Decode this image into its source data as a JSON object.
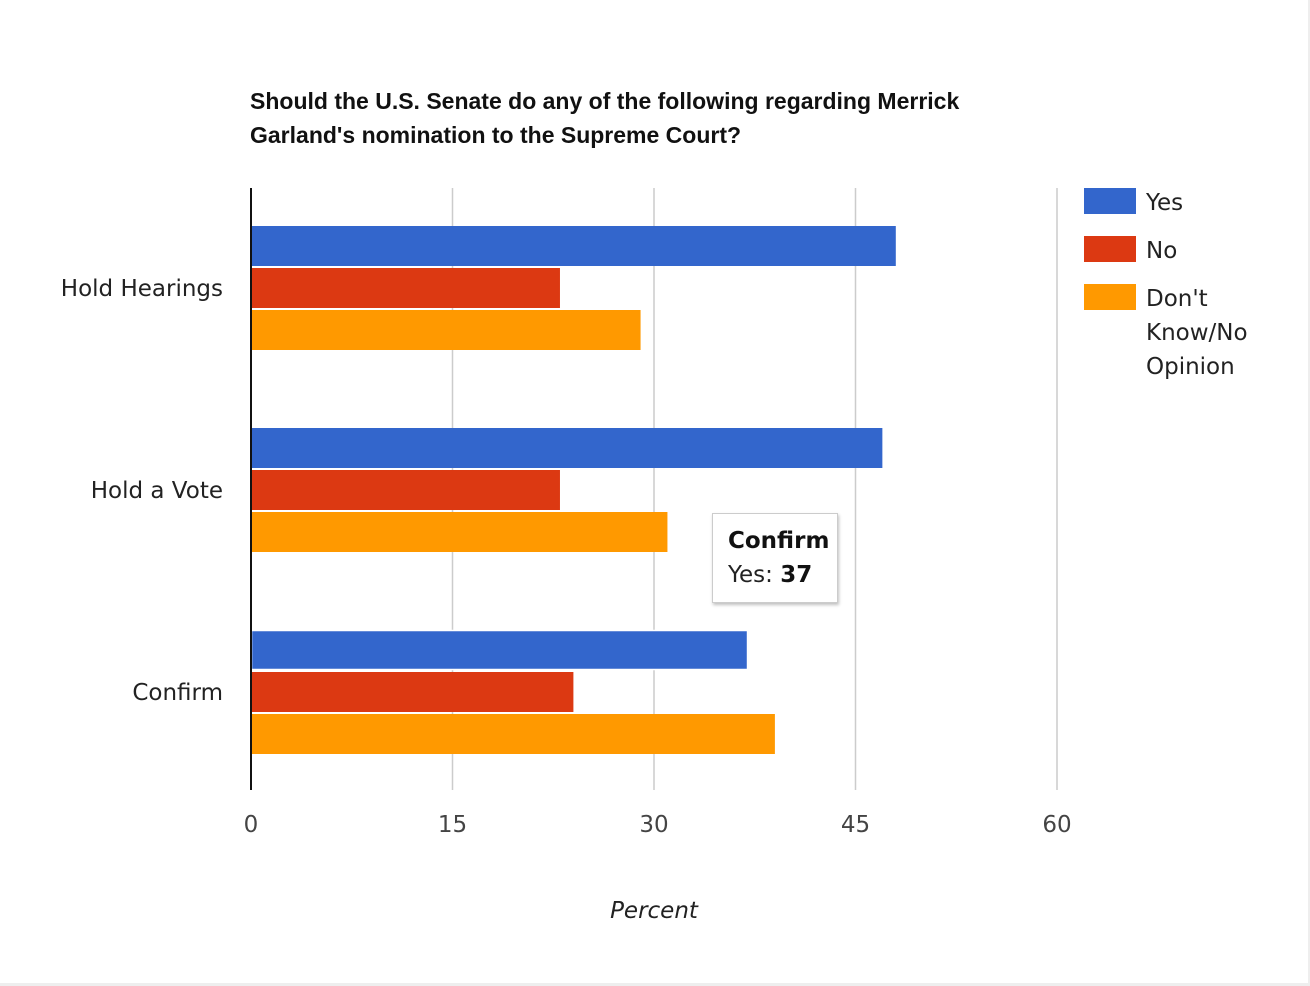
{
  "chart_data": {
    "type": "bar",
    "orientation": "horizontal",
    "title": "Should the U.S. Senate do any of the following regarding Merrick Garland's nomination to the Supreme Court?",
    "xlabel": "Percent",
    "ylabel": "",
    "xlim": [
      0,
      60
    ],
    "xticks": [
      "0",
      "15",
      "30",
      "45",
      "60"
    ],
    "categories": [
      "Hold Hearings",
      "Hold a Vote",
      "Confirm"
    ],
    "series": [
      {
        "name": "Yes",
        "color": "#3366cc",
        "values": [
          48,
          47,
          37
        ]
      },
      {
        "name": "No",
        "color": "#dc3912",
        "values": [
          23,
          23,
          24
        ]
      },
      {
        "name": "Don't Know/No Opinion",
        "color": "#ff9900",
        "values": [
          29,
          31,
          39
        ]
      }
    ],
    "grid": true,
    "legend_position": "right"
  },
  "legend": {
    "items": [
      {
        "label": "Yes",
        "color": "#3366cc"
      },
      {
        "label": "No",
        "color": "#dc3912"
      },
      {
        "label_lines": [
          "Don't",
          "Know/No",
          "Opinion"
        ],
        "color": "#ff9900"
      }
    ]
  },
  "tooltip": {
    "title": "Confirm",
    "series_label": "Yes:",
    "value": "37"
  }
}
